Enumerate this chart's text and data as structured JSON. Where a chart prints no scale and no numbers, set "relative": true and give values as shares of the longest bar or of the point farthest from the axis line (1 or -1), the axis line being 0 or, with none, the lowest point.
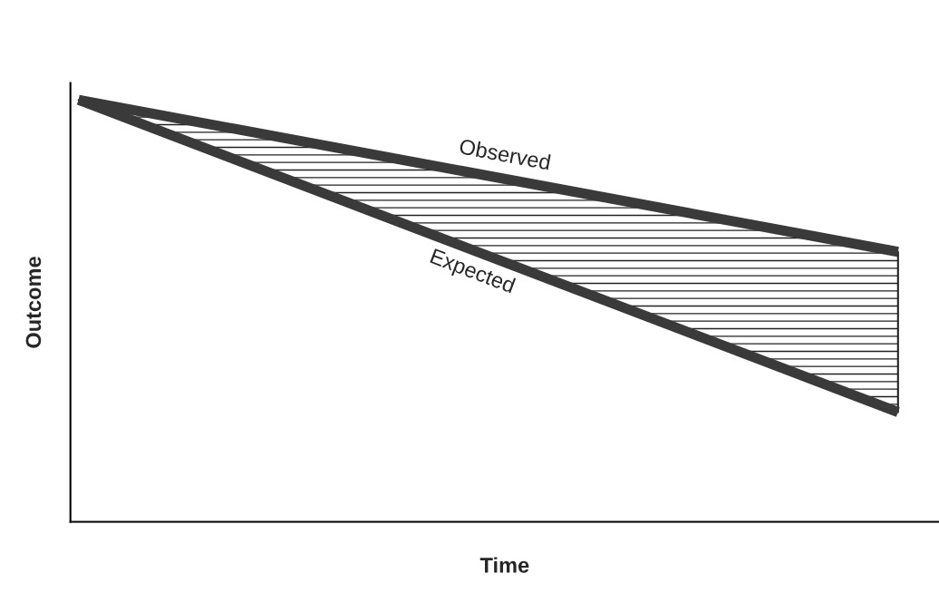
{
  "chart_data": {
    "type": "line",
    "relative": true,
    "xlabel": "Time",
    "ylabel": "Outcome",
    "categories": [
      null,
      null
    ],
    "series": [
      {
        "name": "Observed",
        "color": "#3a3a3a",
        "values": [
          1,
          0.64
        ],
        "lower": [
          1,
          0.26
        ],
        "upper": [
          1,
          0.64
        ]
      },
      {
        "name": "Expected",
        "color": "#3a3a3a",
        "values": [
          1,
          0.26
        ]
      }
    ],
    "legend": false,
    "marker": "none",
    "line_style": "solid"
  }
}
